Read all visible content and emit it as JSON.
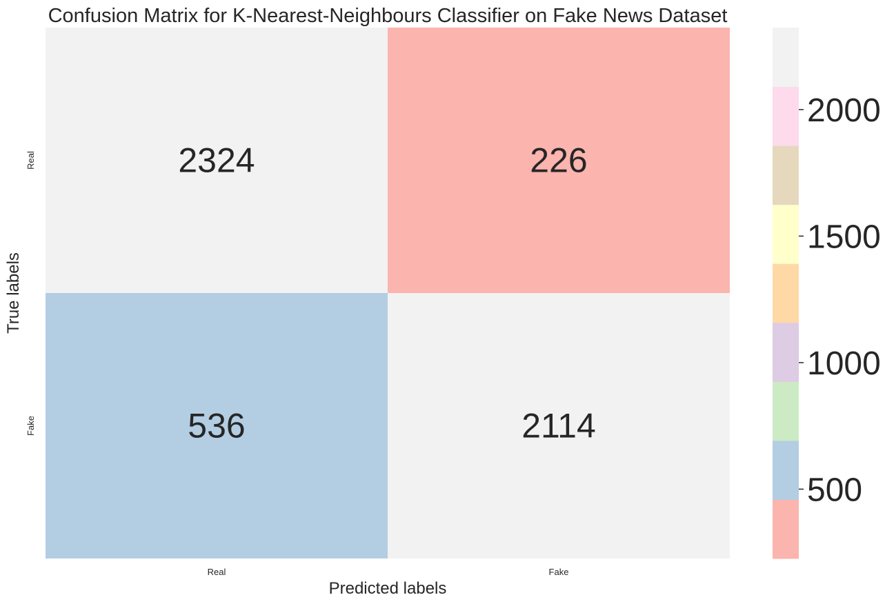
{
  "chart_data": {
    "type": "heatmap",
    "title": "Confusion Matrix for K-Nearest-Neighbours Classifier on Fake News Dataset",
    "xlabel": "Predicted labels",
    "ylabel": "True labels",
    "x_categories": [
      "Real",
      "Fake"
    ],
    "y_categories": [
      "Real",
      "Fake"
    ],
    "values": [
      [
        2324,
        226
      ],
      [
        536,
        2114
      ]
    ],
    "colormap": "Pastel1",
    "colorbar": {
      "vmin": 226,
      "vmax": 2324,
      "ticks": [
        500,
        1000,
        1500,
        2000
      ],
      "tick_labels": [
        "500",
        "1000",
        "1500",
        "2000"
      ],
      "colors": [
        "#fbb4ae",
        "#b3cde3",
        "#ccebc5",
        "#decbe4",
        "#fed9a6",
        "#ffffcc",
        "#e5d8bd",
        "#fddaec",
        "#f2f2f2"
      ]
    },
    "grid": false,
    "legend": "colorbar-right"
  }
}
